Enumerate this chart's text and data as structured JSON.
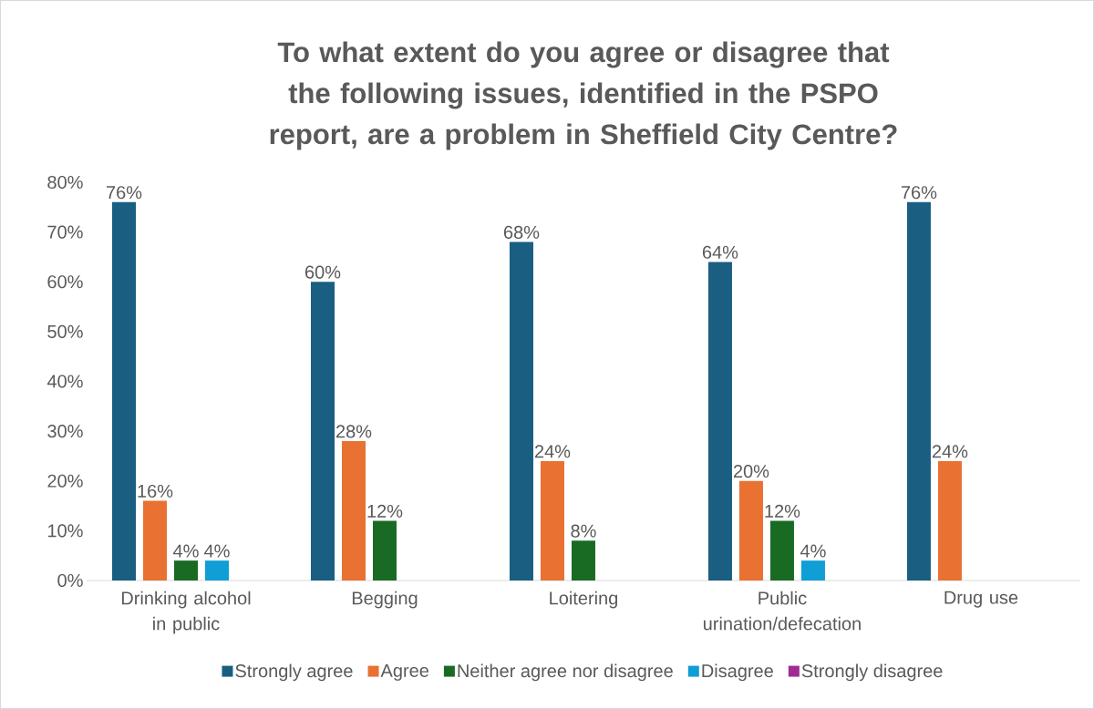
{
  "chart_data": {
    "type": "bar",
    "title": "To what extent do you agree or disagree that the following issues, identified in the PSPO report, are a problem in Sheffield City Centre?",
    "categories": [
      "Drinking alcohol in public",
      "Begging",
      "Loitering",
      "Public urination/defecation",
      "Drug use"
    ],
    "series": [
      {
        "name": "Strongly agree",
        "color": "#1a5e82",
        "values": [
          76,
          60,
          68,
          64,
          76
        ],
        "value_labels": [
          "76%",
          "60%",
          "68%",
          "64%",
          "76%"
        ]
      },
      {
        "name": "Agree",
        "color": "#e97132",
        "values": [
          16,
          28,
          24,
          20,
          24
        ],
        "value_labels": [
          "16%",
          "28%",
          "24%",
          "20%",
          "24%"
        ]
      },
      {
        "name": "Neither agree nor disagree",
        "color": "#196b24",
        "values": [
          4,
          12,
          8,
          12,
          0
        ],
        "value_labels": [
          "4%",
          "12%",
          "8%",
          "12%",
          null
        ]
      },
      {
        "name": "Disagree",
        "color": "#0f9ed5",
        "values": [
          4,
          0,
          0,
          4,
          0
        ],
        "value_labels": [
          "4%",
          null,
          null,
          "4%",
          null
        ]
      },
      {
        "name": "Strongly disagree",
        "color": "#a02b93",
        "values": [
          0,
          0,
          0,
          0,
          0
        ],
        "value_labels": [
          null,
          null,
          null,
          null,
          null
        ]
      }
    ],
    "ylim": [
      0,
      80
    ],
    "yticks": [
      {
        "value": 0,
        "label": "0%"
      },
      {
        "value": 10,
        "label": "10%"
      },
      {
        "value": 20,
        "label": "20%"
      },
      {
        "value": 30,
        "label": "30%"
      },
      {
        "value": 40,
        "label": "40%"
      },
      {
        "value": 50,
        "label": "50%"
      },
      {
        "value": 60,
        "label": "60%"
      },
      {
        "value": 70,
        "label": "70%"
      },
      {
        "value": 80,
        "label": "80%"
      }
    ],
    "legend": "bottom"
  }
}
